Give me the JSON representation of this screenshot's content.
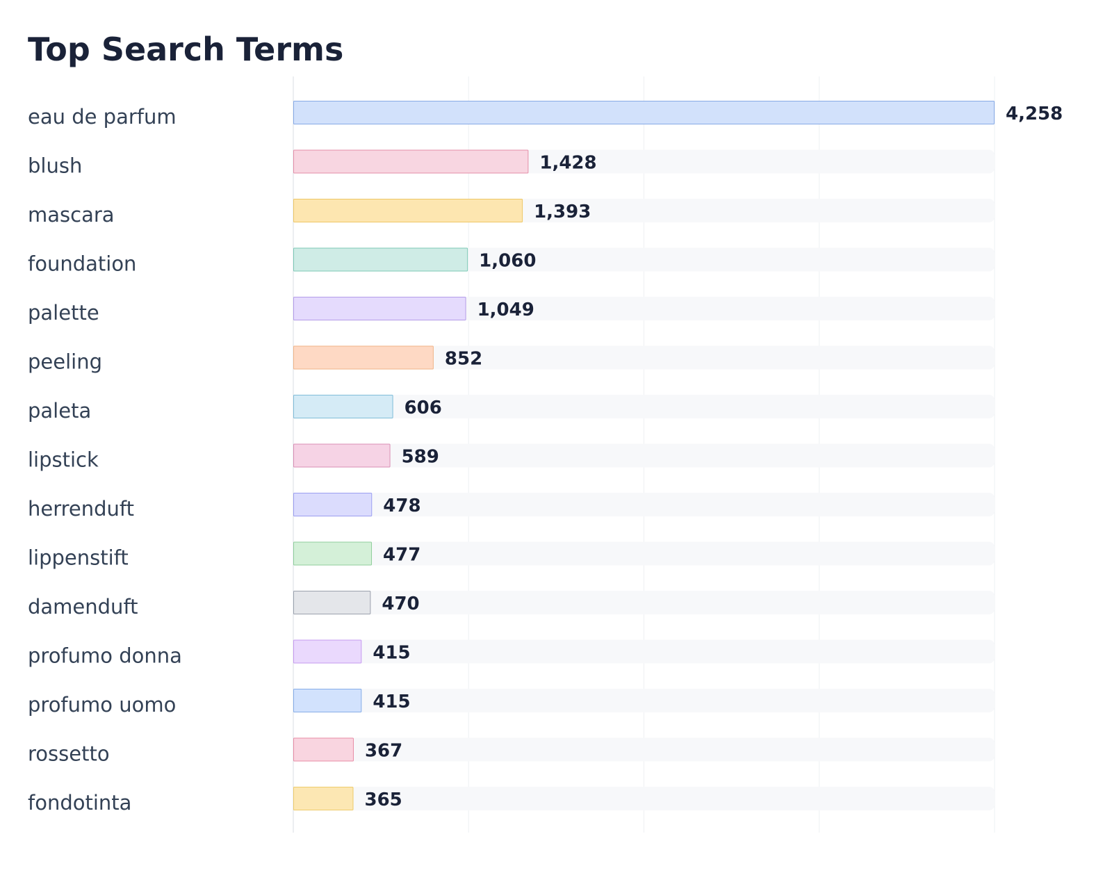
{
  "chart_data": {
    "type": "bar",
    "orientation": "horizontal",
    "title": "Top Search Terms",
    "xlabel": "",
    "ylabel": "",
    "grid": true,
    "legend": "none",
    "xlim": [
      0,
      4258
    ],
    "categories": [
      "eau de parfum",
      "blush",
      "mascara",
      "foundation",
      "palette",
      "peeling",
      "paleta",
      "lipstick",
      "herrenduft",
      "lippenstift",
      "damenduft",
      "profumo donna",
      "profumo uomo",
      "rossetto",
      "fondotinta"
    ],
    "values": [
      4258,
      1428,
      1393,
      1060,
      1049,
      852,
      606,
      589,
      478,
      477,
      470,
      415,
      415,
      367,
      365
    ],
    "value_labels": [
      "4,258",
      "1,428",
      "1,393",
      "1,060",
      "1,049",
      "852",
      "606",
      "589",
      "478",
      "477",
      "470",
      "415",
      "415",
      "367",
      "365"
    ],
    "bar_fill_colors": [
      "#d2e1fb",
      "#f8d6e1",
      "#fde6b0",
      "#cfece6",
      "#e5dbfd",
      "#fed9c4",
      "#d5ebf6",
      "#f6d3e5",
      "#dbdcfd",
      "#d4f0d8",
      "#e4e6ea",
      "#ead9fd",
      "#d2e2fd",
      "#f9d5e0",
      "#fce7b3"
    ],
    "bar_stroke_colors": [
      "#86a9e6",
      "#e58ea8",
      "#eec765",
      "#7cc9b5",
      "#b39be9",
      "#f0b488",
      "#7fbcd8",
      "#d98eb4",
      "#9a9df0",
      "#8fce9b",
      "#9aa1ad",
      "#c69af0",
      "#86ade8",
      "#e88ca5",
      "#eecb6a"
    ]
  }
}
